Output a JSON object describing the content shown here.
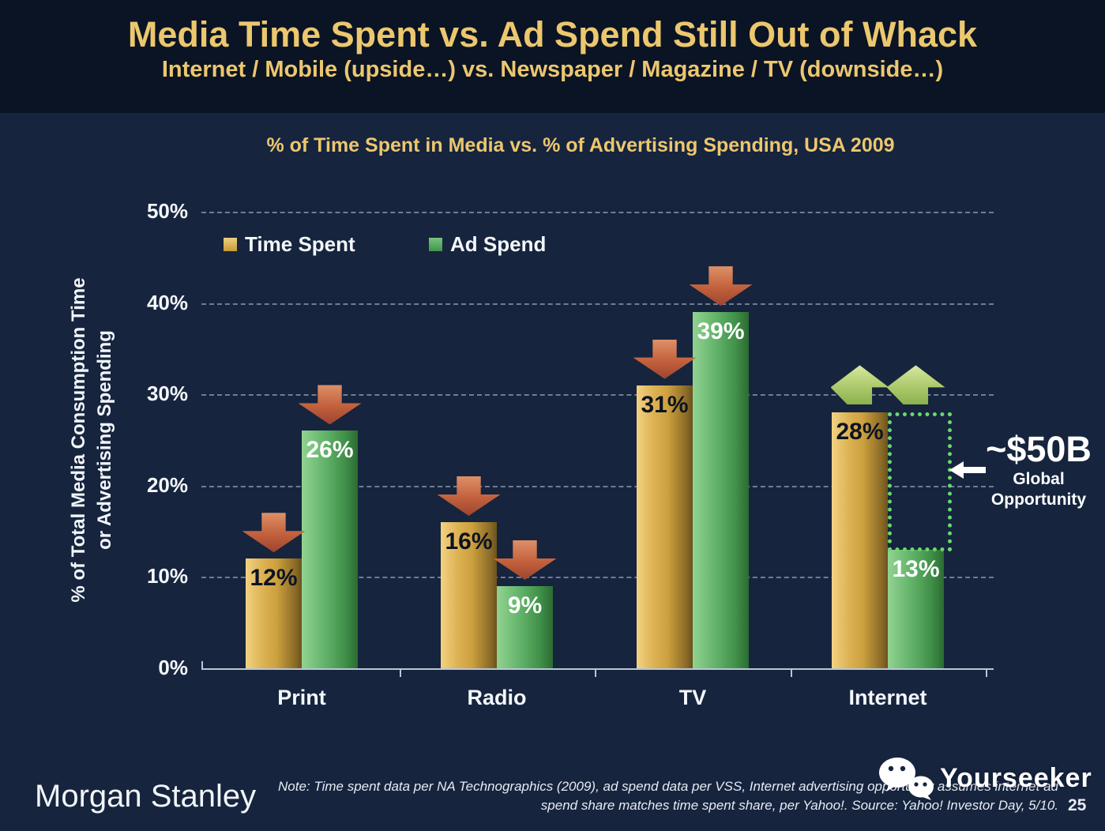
{
  "header": {
    "title": "Media Time Spent vs. Ad Spend Still Out of Whack",
    "subtitle": "Internet / Mobile (upside…) vs. Newspaper / Magazine / TV (downside…)"
  },
  "chart_data": {
    "type": "bar",
    "title": "% of Time Spent in Media vs. % of Advertising Spending, USA 2009",
    "categories": [
      "Print",
      "Radio",
      "TV",
      "Internet"
    ],
    "series": [
      {
        "name": "Time Spent",
        "values": [
          12,
          16,
          31,
          28
        ],
        "color": "#d9ad49",
        "label_color": "#0c1322"
      },
      {
        "name": "Ad Spend",
        "values": [
          26,
          9,
          39,
          13
        ],
        "color": "#4fa457",
        "label_color": "#ffffff"
      }
    ],
    "value_suffix": "%",
    "ylabel": [
      "% of Total Media Consumption Time",
      "or Advertising Spending"
    ],
    "yticks": [
      "0%",
      "10%",
      "20%",
      "30%",
      "40%",
      "50%"
    ],
    "ylim": [
      0,
      50
    ],
    "grid": "horizontal-dashed",
    "legend_position": "top-left-inside",
    "trend_arrows": [
      "down",
      "down",
      "down",
      "up"
    ],
    "arrow_colors": {
      "down": "#c2603c",
      "up": "#b3cf74"
    },
    "opportunity": {
      "category": "Internet",
      "from_value": 13,
      "to_value": 28,
      "box_color": "#67da6b",
      "headline": "~$50B",
      "label_line1": "Global",
      "label_line2": "Opportunity"
    }
  },
  "footer": {
    "brand": "Morgan Stanley",
    "note_line1": "Note: Time spent data per NA Technographics (2009), ad spend data per VSS, Internet advertising opportunity assumes internet ad",
    "note_line2": "spend share matches time spent share, per Yahoo!. Source: Yahoo! Investor Day, 5/10.",
    "page_number": "25",
    "watermark": "Yourseeker"
  }
}
